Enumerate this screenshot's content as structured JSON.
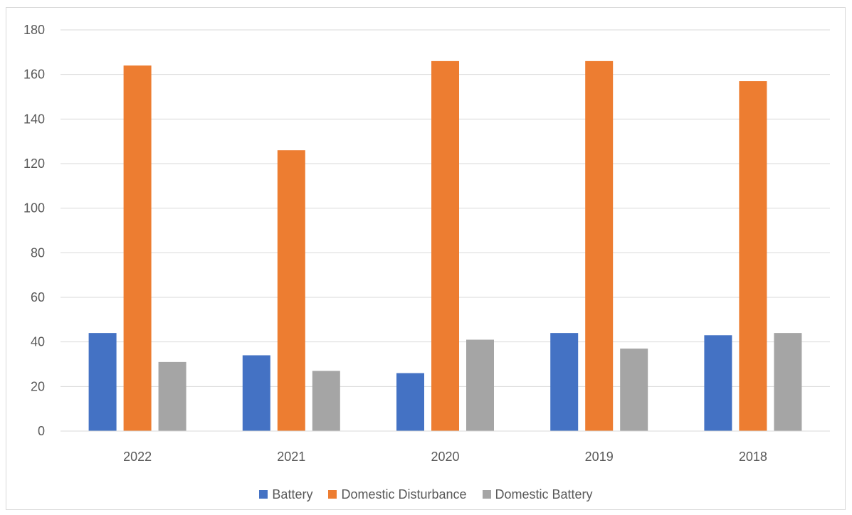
{
  "chart_data": {
    "type": "bar",
    "title": "",
    "xlabel": "",
    "ylabel": "",
    "categories": [
      "2022",
      "2021",
      "2020",
      "2019",
      "2018"
    ],
    "series": [
      {
        "name": "Battery",
        "color": "#4472C4",
        "values": [
          44,
          34,
          26,
          44,
          43
        ]
      },
      {
        "name": "Domestic Disturbance",
        "color": "#ED7D31",
        "values": [
          164,
          126,
          166,
          166,
          157
        ]
      },
      {
        "name": "Domestic Battery",
        "color": "#A5A5A5",
        "values": [
          31,
          27,
          41,
          37,
          44
        ]
      }
    ],
    "ylim": [
      0,
      180
    ],
    "yticks": [
      "0",
      "20",
      "40",
      "60",
      "80",
      "100",
      "120",
      "140",
      "160",
      "180"
    ],
    "grid": true,
    "legend_position": "bottom"
  }
}
